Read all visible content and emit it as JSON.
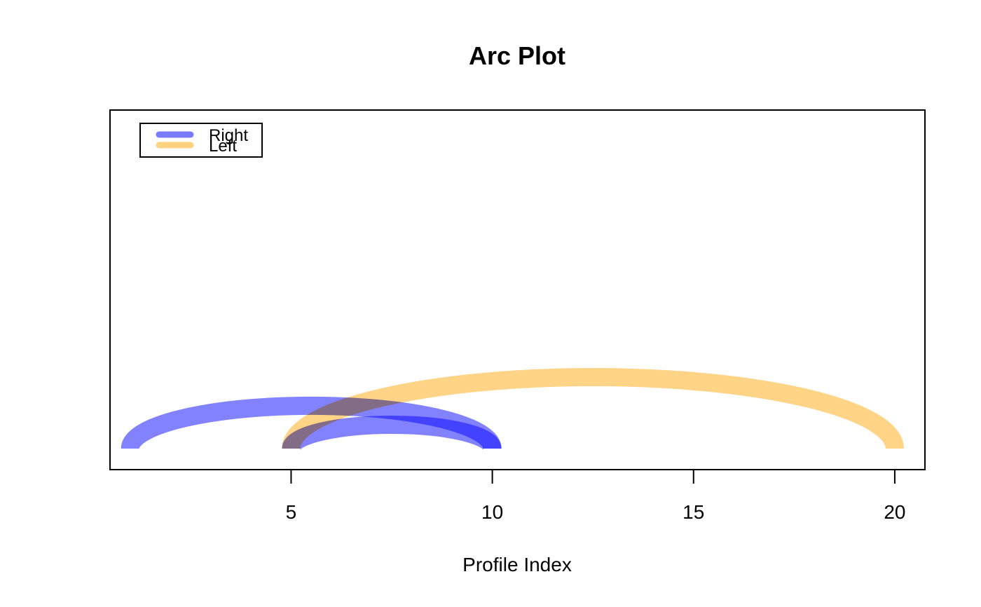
{
  "chart_data": {
    "type": "arc",
    "title": "Arc Plot",
    "xlabel": "Profile Index",
    "ylabel": "",
    "xlim": [
      0.5,
      20.75
    ],
    "xticks": [
      5,
      10,
      15,
      20
    ],
    "grid": false,
    "legend": {
      "position": "top-left",
      "entries": [
        {
          "label": "Right",
          "color": "#7B7BFF"
        },
        {
          "label": "Left",
          "color": "#FFD280"
        }
      ]
    },
    "series": [
      {
        "name": "Right",
        "color": "#7B7BFF",
        "arcs": [
          {
            "from": 1,
            "to": 10
          },
          {
            "from": 5,
            "to": 10
          }
        ]
      },
      {
        "name": "Left",
        "color": "#FFD280",
        "arcs": [
          {
            "from": 5,
            "to": 20
          }
        ]
      }
    ]
  }
}
